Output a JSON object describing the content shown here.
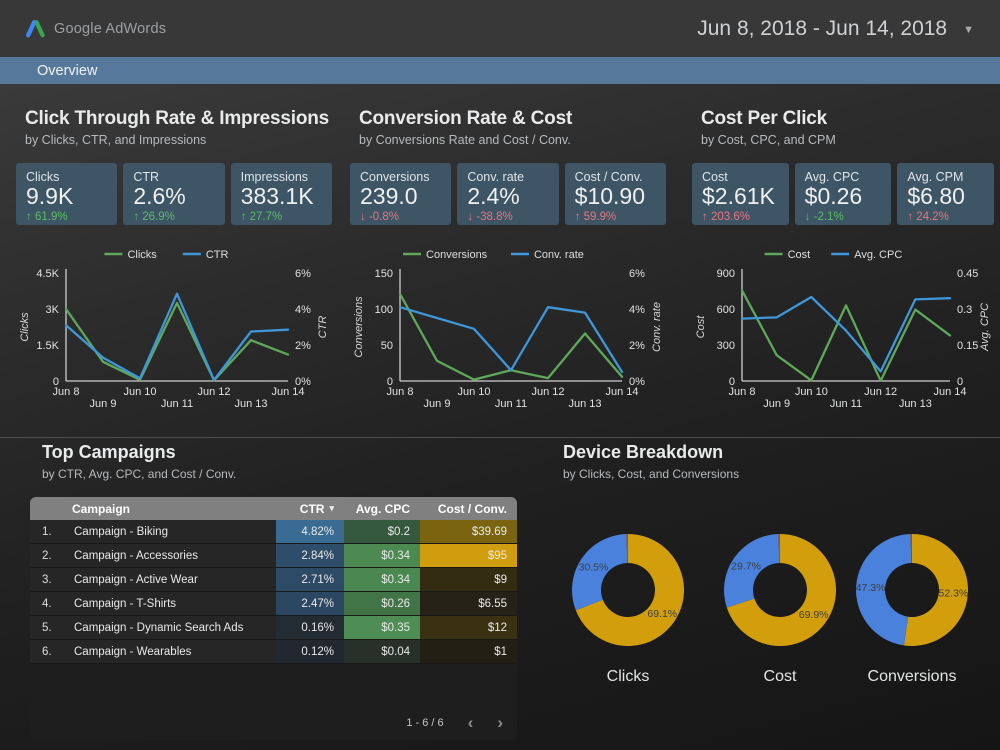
{
  "theme": {
    "header_bg": "#383838",
    "nav_bg": "#56789b",
    "scorecard_bg": "#3d5565",
    "delta_green": "#5cbd66",
    "delta_red": "#e8767d",
    "table_header_bg": "#808080",
    "card_bg": "#1e1e1e",
    "line_green": "#5fa85a",
    "line_blue": "#3f96d8",
    "donut_gold": "#d39e0c",
    "donut_blue": "#4a81dc",
    "donut_red": "#c63d2d",
    "logo_blue": "#4285f4",
    "logo_green": "#34a853"
  },
  "header": {
    "brand": "Google AdWords",
    "date_range": "Jun 8, 2018 - Jun 14, 2018"
  },
  "nav": {
    "tab": "Overview"
  },
  "sections": {
    "ctr": {
      "title": "Click Through Rate & Impressions",
      "subtitle": "by Clicks, CTR, and Impressions",
      "scorecards": [
        {
          "label": "Clicks",
          "value": "9.9K",
          "delta": "61.9%",
          "dir": "up",
          "tone": "green"
        },
        {
          "label": "CTR",
          "value": "2.6%",
          "delta": "26.9%",
          "dir": "up",
          "tone": "green"
        },
        {
          "label": "Impressions",
          "value": "383.1K",
          "delta": "27.7%",
          "dir": "up",
          "tone": "green"
        }
      ]
    },
    "conv": {
      "title": "Conversion Rate & Cost",
      "subtitle": "by Conversions Rate and Cost / Conv.",
      "scorecards": [
        {
          "label": "Conversions",
          "value": "239.0",
          "delta": "-0.8%",
          "dir": "down",
          "tone": "red"
        },
        {
          "label": "Conv. rate",
          "value": "2.4%",
          "delta": "-38.8%",
          "dir": "down",
          "tone": "red"
        },
        {
          "label": "Cost / Conv.",
          "value": "$10.90",
          "delta": "59.9%",
          "dir": "up",
          "tone": "red"
        }
      ]
    },
    "cpc": {
      "title": "Cost Per Click",
      "subtitle": "by Cost, CPC, and CPM",
      "scorecards": [
        {
          "label": "Cost",
          "value": "$2.61K",
          "delta": "203.6%",
          "dir": "up",
          "tone": "red"
        },
        {
          "label": "Avg. CPC",
          "value": "$0.26",
          "delta": "-2.1%",
          "dir": "down",
          "tone": "green"
        },
        {
          "label": "Avg. CPM",
          "value": "$6.80",
          "delta": "24.2%",
          "dir": "up",
          "tone": "red"
        }
      ]
    }
  },
  "top_campaigns": {
    "title": "Top Campaigns",
    "subtitle": "by CTR, Avg. CPC, and Cost / Conv.",
    "columns": {
      "campaign": "Campaign",
      "ctr": "CTR",
      "cpc": "Avg. CPC",
      "cost": "Cost / Conv."
    },
    "sort_column": "CTR",
    "rows": [
      {
        "num": "1.",
        "name": "Campaign - Biking",
        "ctr": "4.82%",
        "cpc": "$0.2",
        "cost": "$39.69",
        "ctr_bg": "#3a6b92",
        "cpc_bg": "#35593c",
        "cost_bg": "#7a640f"
      },
      {
        "num": "2.",
        "name": "Campaign - Accessories",
        "ctr": "2.84%",
        "cpc": "$0.34",
        "cost": "$95",
        "ctr_bg": "#2e4d6b",
        "cpc_bg": "#4c8a52",
        "cost_bg": "#d09d0f"
      },
      {
        "num": "3.",
        "name": "Campaign - Active Wear",
        "ctr": "2.71%",
        "cpc": "$0.34",
        "cost": "$9",
        "ctr_bg": "#2d4a66",
        "cpc_bg": "#4b8851",
        "cost_bg": "#332b12"
      },
      {
        "num": "4.",
        "name": "Campaign - T-Shirts",
        "ctr": "2.47%",
        "cpc": "$0.26",
        "cost": "$6.55",
        "ctr_bg": "#2b4761",
        "cpc_bg": "#417446",
        "cost_bg": "#262218"
      },
      {
        "num": "5.",
        "name": "Campaign - Dynamic Search Ads",
        "ctr": "0.16%",
        "cpc": "$0.35",
        "cost": "$12",
        "ctr_bg": "#232b33",
        "cpc_bg": "#4e8d54",
        "cost_bg": "#3a3113"
      },
      {
        "num": "6.",
        "name": "Campaign - Wearables",
        "ctr": "0.12%",
        "cpc": "$0.04",
        "cost": "$1",
        "ctr_bg": "#22282f",
        "cpc_bg": "#273129",
        "cost_bg": "#221f15"
      }
    ],
    "pagination": {
      "label": "1 - 6 / 6"
    }
  },
  "device_breakdown": {
    "title": "Device Breakdown",
    "subtitle": "by Clicks, Cost, and Conversions",
    "donut_labels": [
      "Clicks",
      "Cost",
      "Conversions"
    ]
  },
  "chart_data": [
    {
      "id": "clicks_ctr_line",
      "type": "line",
      "x": [
        "Jun 8",
        "Jun 9",
        "Jun 10",
        "Jun 11",
        "Jun 12",
        "Jun 13",
        "Jun 14"
      ],
      "series": [
        {
          "name": "Clicks",
          "axis": "left",
          "color": "#5fa85a",
          "values": [
            3000,
            800,
            50,
            3250,
            30,
            1700,
            1100
          ]
        },
        {
          "name": "CTR",
          "axis": "right",
          "color": "#3f96d8",
          "values": [
            3.1,
            1.3,
            0.15,
            4.85,
            0.05,
            2.75,
            2.85
          ]
        }
      ],
      "left_axis": {
        "label": "Clicks",
        "ticks": [
          "0",
          "1.5K",
          "3K",
          "4.5K"
        ],
        "min": 0,
        "max": 4500
      },
      "right_axis": {
        "label": "CTR",
        "ticks": [
          "0%",
          "2%",
          "4%",
          "6%"
        ],
        "min": 0,
        "max": 6
      },
      "grid": false,
      "legend_position": "top"
    },
    {
      "id": "conversions_rate_line",
      "type": "line",
      "x": [
        "Jun 8",
        "Jun 9",
        "Jun 10",
        "Jun 11",
        "Jun 12",
        "Jun 13",
        "Jun 14"
      ],
      "series": [
        {
          "name": "Conversions",
          "axis": "left",
          "color": "#5fa85a",
          "values": [
            121,
            28,
            2,
            15,
            4,
            66,
            6
          ]
        },
        {
          "name": "Conv. rate",
          "axis": "right",
          "color": "#3f96d8",
          "values": [
            4.1,
            3.5,
            2.9,
            0.6,
            4.1,
            3.8,
            0.5
          ]
        }
      ],
      "left_axis": {
        "label": "Conversions",
        "ticks": [
          "0",
          "50",
          "100",
          "150"
        ],
        "min": 0,
        "max": 150
      },
      "right_axis": {
        "label": "Conv. rate",
        "ticks": [
          "0%",
          "2%",
          "4%",
          "6%"
        ],
        "min": 0,
        "max": 6
      },
      "grid": false,
      "legend_position": "top"
    },
    {
      "id": "cost_cpc_line",
      "type": "line",
      "x": [
        "Jun 8",
        "Jun 9",
        "Jun 10",
        "Jun 11",
        "Jun 12",
        "Jun 13",
        "Jun 14"
      ],
      "series": [
        {
          "name": "Cost",
          "axis": "left",
          "color": "#5fa85a",
          "values": [
            755,
            215,
            5,
            630,
            2,
            595,
            380
          ]
        },
        {
          "name": "Avg. CPC",
          "axis": "right",
          "color": "#3f96d8",
          "values": [
            0.26,
            0.265,
            0.35,
            0.21,
            0.04,
            0.34,
            0.345
          ]
        }
      ],
      "left_axis": {
        "label": "Cost",
        "ticks": [
          "0",
          "300",
          "600",
          "900"
        ],
        "min": 0,
        "max": 900
      },
      "right_axis": {
        "label": "Avg. CPC",
        "ticks": [
          "0",
          "0.15",
          "0.3",
          "0.45"
        ],
        "min": 0,
        "max": 0.45
      },
      "grid": false,
      "legend_position": "top"
    },
    {
      "id": "donut_clicks",
      "type": "pie",
      "title": "Clicks",
      "slices": [
        {
          "label": "69.1%",
          "value": 69.1,
          "color": "#d39e0c"
        },
        {
          "label": "30.5%",
          "value": 30.5,
          "color": "#4a81dc"
        },
        {
          "label": "",
          "value": 0.4,
          "color": "#c63d2d"
        }
      ]
    },
    {
      "id": "donut_cost",
      "type": "pie",
      "title": "Cost",
      "slices": [
        {
          "label": "69.9%",
          "value": 69.9,
          "color": "#d39e0c"
        },
        {
          "label": "29.7%",
          "value": 29.7,
          "color": "#4a81dc"
        },
        {
          "label": "",
          "value": 0.4,
          "color": "#c63d2d"
        }
      ]
    },
    {
      "id": "donut_conversions",
      "type": "pie",
      "title": "Conversions",
      "slices": [
        {
          "label": "52.3%",
          "value": 52.3,
          "color": "#d39e0c"
        },
        {
          "label": "47.3%",
          "value": 47.3,
          "color": "#4a81dc"
        },
        {
          "label": "",
          "value": 0.4,
          "color": "#c63d2d"
        }
      ]
    }
  ]
}
